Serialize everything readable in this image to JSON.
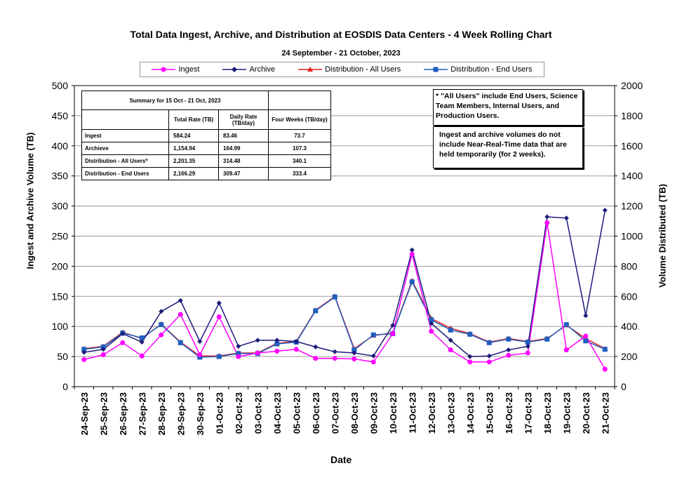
{
  "chart_data": {
    "type": "line",
    "title": "Total Data Ingest, Archive, and  Distribution at EOSDIS Data Centers - 4 Week Rolling Chart",
    "subtitle": "24 September   - 21 October,  2023",
    "xlabel": "Date",
    "ylabel": "Ingest and Archive Volume (TB)",
    "ylabel_right": "Volume Distributed (TB)",
    "ylim": [
      0,
      500
    ],
    "ylim_right": [
      0,
      2000
    ],
    "yticks": [
      "0",
      "50",
      "100",
      "150",
      "200",
      "250",
      "300",
      "350",
      "400",
      "450",
      "500"
    ],
    "yticks_right": [
      "0",
      "200",
      "400",
      "600",
      "800",
      "1000",
      "1200",
      "1400",
      "1600",
      "1800",
      "2000"
    ],
    "grid": true,
    "legend_position": "top",
    "categories": [
      "24-Sep-23",
      "25-Sep-23",
      "26-Sep-23",
      "27-Sep-23",
      "28-Sep-23",
      "29-Sep-23",
      "30-Sep-23",
      "01-Oct-23",
      "02-Oct-23",
      "03-Oct-23",
      "04-Oct-23",
      "05-Oct-23",
      "06-Oct-23",
      "07-Oct-23",
      "08-Oct-23",
      "09-Oct-23",
      "10-Oct-23",
      "11-Oct-23",
      "12-Oct-23",
      "13-Oct-23",
      "14-Oct-23",
      "15-Oct-23",
      "16-Oct-23",
      "17-Oct-23",
      "18-Oct-23",
      "19-Oct-23",
      "20-Oct-23",
      "21-Oct-23"
    ],
    "series": [
      {
        "name": "Ingest",
        "axis": "left",
        "color": "#ff00ff",
        "marker": "circle",
        "values": [
          45,
          53,
          73,
          51,
          86,
          120,
          53,
          116,
          50,
          56,
          59,
          62,
          47,
          47,
          46,
          41,
          88,
          220,
          92,
          61,
          41,
          41,
          52,
          56,
          272,
          61,
          84,
          29
        ]
      },
      {
        "name": "Archive",
        "axis": "left",
        "color": "#1a1a7a",
        "marker": "diamond",
        "values": [
          57,
          62,
          88,
          74,
          125,
          143,
          75,
          139,
          67,
          77,
          77,
          75,
          66,
          58,
          56,
          51,
          102,
          227,
          105,
          77,
          50,
          51,
          61,
          67,
          282,
          280,
          118,
          293
        ]
      },
      {
        "name": "Distribution - All Users",
        "axis": "right",
        "color": "#e02020",
        "marker": "triangle",
        "values": [
          252,
          268,
          362,
          320,
          416,
          296,
          204,
          204,
          224,
          224,
          288,
          300,
          508,
          600,
          252,
          340,
          356,
          704,
          452,
          388,
          352,
          296,
          320,
          300,
          320,
          408,
          320,
          252
        ]
      },
      {
        "name": "Distribution - End Users",
        "axis": "right",
        "color": "#1f5fbf",
        "marker": "square",
        "values": [
          248,
          264,
          356,
          324,
          412,
          292,
          196,
          200,
          220,
          220,
          284,
          296,
          504,
          596,
          244,
          344,
          352,
          696,
          444,
          376,
          348,
          292,
          316,
          296,
          316,
          412,
          304,
          248
        ]
      }
    ]
  },
  "summary": {
    "caption": "Summary  for  15  Oct  -  21  Oct,  2023",
    "col_total": "Total  Rate (TB)",
    "col_daily": "Daily  Rate (TB/day)",
    "col_four": "Four  Weeks (TB/day)",
    "rows": [
      {
        "label": "Ingest",
        "total": "584.24",
        "daily": "83.46",
        "four": "73.7"
      },
      {
        "label": "Archieve",
        "total": "1,154.94",
        "daily": "164.99",
        "four": "107.3"
      },
      {
        "label": "Distribution - All Users*",
        "total": "2,201.35",
        "daily": "314.48",
        "four": "340.1"
      },
      {
        "label": "Distribution - End Users",
        "total": "2,166.29",
        "daily": "309.47",
        "four": "333.4"
      }
    ]
  },
  "notes": {
    "all_users": "* \"All Users\" include End Users, Science Team Members,  Internal Users, and Production Users.",
    "nrt": "Ingest and archive volumes do not include Near-Real-Time data that are held temporarily (for 2 weeks)."
  }
}
